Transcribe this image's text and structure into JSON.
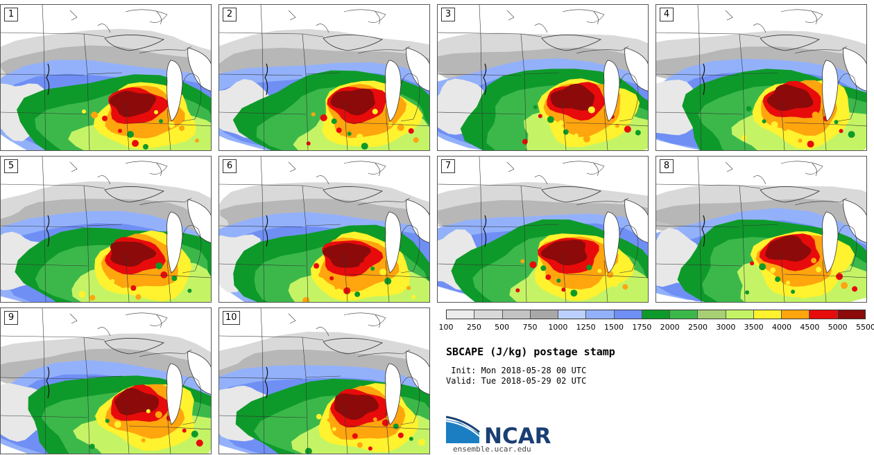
{
  "panels": [
    {
      "label": "1",
      "row": 0,
      "col": 0
    },
    {
      "label": "2",
      "row": 0,
      "col": 1
    },
    {
      "label": "3",
      "row": 0,
      "col": 2
    },
    {
      "label": "4",
      "row": 0,
      "col": 3
    },
    {
      "label": "5",
      "row": 1,
      "col": 0
    },
    {
      "label": "6",
      "row": 1,
      "col": 1
    },
    {
      "label": "7",
      "row": 1,
      "col": 2
    },
    {
      "label": "8",
      "row": 1,
      "col": 3
    },
    {
      "label": "9",
      "row": 2,
      "col": 0
    },
    {
      "label": "10",
      "row": 2,
      "col": 1
    }
  ],
  "colorbar": {
    "colors": [
      "#ececec",
      "#d9d9d9",
      "#c4c4c4",
      "#a8a8a8",
      "#bcd0ff",
      "#93b1fb",
      "#6f8ff5",
      "#0e9a2a",
      "#3cb84b",
      "#a7cf73",
      "#c4f466",
      "#fff22e",
      "#ffa50e",
      "#e80b0b",
      "#8c0a0a"
    ],
    "tick_labels": [
      "100",
      "250",
      "500",
      "750",
      "1000",
      "1250",
      "1500",
      "1750",
      "2000",
      "2500",
      "3000",
      "3500",
      "4000",
      "4500",
      "5000",
      "5500"
    ]
  },
  "title": "SBCAPE (J/kg) postage stamp",
  "init_text": " Init: Mon 2018-05-28 00 UTC",
  "valid_text": "Valid: Tue 2018-05-29 02 UTC",
  "logo": {
    "text": "NCAR",
    "url": "ensemble.ucar.edu",
    "colors": {
      "blue": "#1b7ec2",
      "navy": "#1a3f73"
    }
  }
}
